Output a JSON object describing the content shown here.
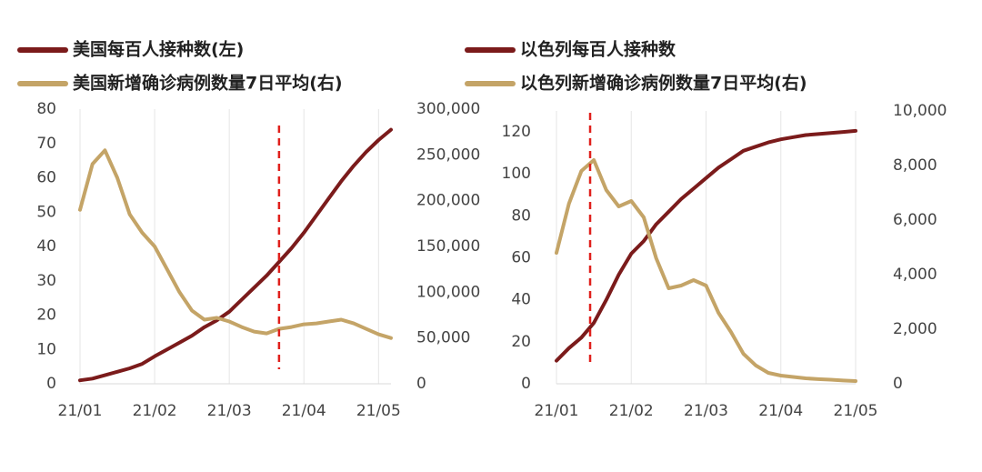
{
  "chart_data": [
    {
      "type": "line",
      "categories": [
        "21/01",
        null,
        null,
        null,
        null,
        null,
        "21/02",
        null,
        null,
        null,
        null,
        null,
        "21/03",
        null,
        null,
        null,
        null,
        null,
        "21/04",
        null,
        null,
        null,
        null,
        null,
        "21/05",
        null
      ],
      "series": [
        {
          "name": "美国每百人接种数(左)",
          "color": "#7b1b1b",
          "axis": "y",
          "values": [
            1,
            1.5,
            2.5,
            3.5,
            4.5,
            5.8,
            8,
            10,
            12,
            14,
            16.5,
            18.5,
            21,
            24.5,
            28,
            31.5,
            35.5,
            39.5,
            44,
            49,
            54,
            59,
            63.5,
            67.5,
            71,
            74
          ]
        },
        {
          "name": "美国新增确诊病例数量7日平均(右)",
          "color": "#c4a467",
          "axis": "y2",
          "values": [
            190000,
            240000,
            255000,
            225000,
            185000,
            165000,
            150000,
            125000,
            100000,
            80000,
            70000,
            72000,
            68000,
            62000,
            57000,
            55000,
            60000,
            62000,
            65000,
            66000,
            68000,
            70000,
            66000,
            60000,
            54000,
            50000
          ]
        }
      ],
      "ylim": [
        0,
        80
      ],
      "yticks": [
        0,
        10,
        20,
        30,
        40,
        50,
        60,
        70,
        80
      ],
      "y2lim": [
        0,
        300000
      ],
      "y2ticks": [
        0,
        {
          "value": 50000,
          "label": "50,000"
        },
        {
          "value": 100000,
          "label": "100,000"
        },
        {
          "value": 150000,
          "label": "150,000"
        },
        {
          "value": 200000,
          "label": "200,000"
        },
        {
          "value": 250000,
          "label": "250,000"
        },
        {
          "value": 300000,
          "label": "300,000"
        }
      ],
      "marker_x": 16,
      "grid": true
    },
    {
      "type": "line",
      "categories": [
        "21/01",
        null,
        null,
        null,
        null,
        null,
        "21/02",
        null,
        null,
        null,
        null,
        null,
        "21/03",
        null,
        null,
        null,
        null,
        null,
        "21/04",
        null,
        null,
        null,
        null,
        null,
        "21/05"
      ],
      "series": [
        {
          "name": "以色列每百人接种数",
          "color": "#7b1b1b",
          "axis": "y",
          "values": [
            11,
            17,
            22,
            29,
            40,
            52,
            62,
            68,
            76,
            82,
            88,
            93,
            98,
            103,
            107,
            111,
            113,
            115,
            116.5,
            117.5,
            118.5,
            119,
            119.5,
            120,
            120.5
          ]
        },
        {
          "name": "以色列新增确诊病例数量7日平均(右)",
          "color": "#c4a467",
          "axis": "y2",
          "values": [
            4800,
            6600,
            7800,
            8200,
            7100,
            6500,
            6700,
            6100,
            4600,
            3500,
            3600,
            3800,
            3600,
            2600,
            1900,
            1100,
            670,
            400,
            300,
            250,
            200,
            170,
            150,
            120,
            100
          ]
        }
      ],
      "ylim": [
        0,
        130
      ],
      "yticks": [
        0,
        20,
        40,
        60,
        80,
        100,
        120
      ],
      "y2lim": [
        0,
        10000
      ],
      "y2ticks": [
        0,
        {
          "value": 2000,
          "label": "2,000"
        },
        {
          "value": 4000,
          "label": "4,000"
        },
        {
          "value": 6000,
          "label": "6,000"
        },
        {
          "value": 8000,
          "label": "8,000"
        },
        {
          "value": 10000,
          "label": "10,000"
        }
      ],
      "marker_x": 2.7,
      "grid": true
    }
  ]
}
